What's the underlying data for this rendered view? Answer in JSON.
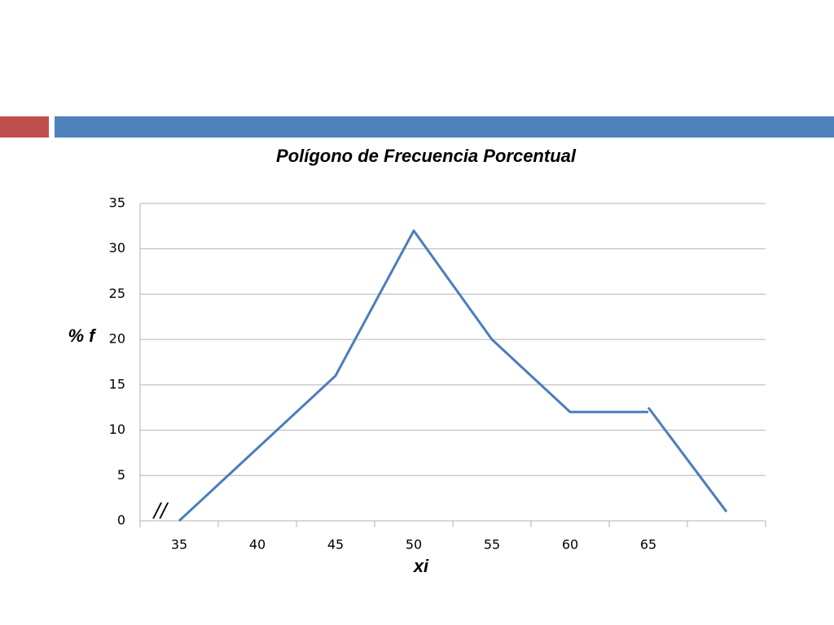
{
  "chart_data": {
    "type": "line",
    "title": "Polígono de Frecuencia Porcentual",
    "x_label": "xi",
    "y_label": "% f",
    "annotations": [
      "//"
    ],
    "categories": [
      35,
      40,
      45,
      50,
      55,
      60,
      65,
      null
    ],
    "series": [
      {
        "color": "#4a7ebb",
        "values": [
          0,
          8,
          16,
          32,
          20,
          12,
          12,
          null
        ]
      },
      {
        "color": "#4a7ebb",
        "values": [
          null,
          null,
          null,
          null,
          null,
          null,
          12.5,
          1
        ]
      }
    ],
    "ylim": [
      0,
      35
    ],
    "yticks": [
      0,
      5,
      10,
      15,
      20,
      25,
      30,
      35
    ],
    "grid": true
  }
}
